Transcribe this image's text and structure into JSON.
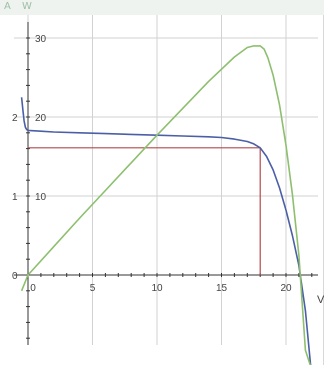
{
  "header": {
    "left_unit": "A",
    "right_unit": "W"
  },
  "colors": {
    "current_curve": "#4a5fa6",
    "power_curve": "#8dbf6f",
    "mpp_lines": "#b24a4a",
    "axis": "#333333",
    "grid": "#d2d2d2",
    "header_bg": "#eef3ef"
  },
  "chart_data": {
    "type": "line",
    "title": "",
    "xlabel": "V",
    "ylabel_left": "A",
    "ylabel_right": "W",
    "grid": true,
    "xlim": [
      -0.5,
      22.5
    ],
    "x_ticks": [
      0,
      5,
      10,
      15,
      20
    ],
    "ylim_current": [
      -1.5,
      3.0
    ],
    "current_ticks": [
      0,
      1,
      2
    ],
    "ylim_power": [
      -15,
      32
    ],
    "power_ticks": [
      10,
      20,
      30
    ],
    "series": [
      {
        "axis": "current",
        "color": "#4a5fa6",
        "x": [
          -0.5,
          -0.4,
          -0.3,
          -0.2,
          -0.1,
          0,
          1,
          2,
          4,
          6,
          8,
          10,
          12,
          14,
          15,
          16,
          17,
          17.5,
          18,
          18.5,
          19,
          19.5,
          20,
          20.5,
          21,
          21.5,
          22
        ],
        "y": [
          2.25,
          2.1,
          1.95,
          1.87,
          1.84,
          1.83,
          1.82,
          1.81,
          1.8,
          1.79,
          1.78,
          1.77,
          1.76,
          1.75,
          1.74,
          1.72,
          1.69,
          1.66,
          1.61,
          1.5,
          1.33,
          1.1,
          0.82,
          0.5,
          0.12,
          -0.45,
          -1.3
        ]
      },
      {
        "axis": "power",
        "color": "#8dbf6f",
        "x": [
          -0.5,
          0,
          2,
          4,
          6,
          8,
          10,
          12,
          14,
          16,
          17,
          17.5,
          18,
          18.3,
          18.6,
          19,
          19.5,
          20,
          20.5,
          21,
          21.5,
          22
        ],
        "y": [
          -2.0,
          0,
          3.6,
          7.2,
          10.7,
          14.2,
          17.7,
          21.1,
          24.5,
          27.6,
          28.8,
          29.0,
          29.0,
          28.6,
          27.5,
          25.3,
          21.5,
          16.4,
          10.2,
          2.5,
          -9.5,
          -12.0
        ]
      }
    ],
    "annotations": [
      {
        "type": "mpp-marker",
        "voltage": 18.0,
        "current": 1.61
      }
    ]
  }
}
